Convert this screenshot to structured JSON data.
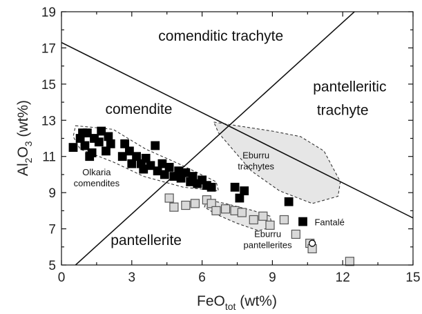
{
  "chart_data": {
    "type": "scatter",
    "xlabel": {
      "base": "FeO",
      "sub": "tot",
      "suffix": " (wt%)"
    },
    "ylabel": {
      "base": "Al",
      "sub1": "2",
      "mid": "O",
      "sub2": "3",
      "suffix": " (wt%)"
    },
    "xlim": [
      0,
      15
    ],
    "ylim": [
      5,
      19
    ],
    "xticks": [
      "0",
      "3",
      "6",
      "9",
      "12",
      "15"
    ],
    "yticks": [
      "5",
      "7",
      "9",
      "11",
      "13",
      "15",
      "17",
      "19"
    ],
    "grid": false,
    "legend": "none",
    "boundaries": [
      {
        "name": "trachyte-rhyolite divide",
        "points": [
          [
            0,
            17.3
          ],
          [
            15,
            7.6
          ]
        ]
      },
      {
        "name": "comendite-pantellerite divide",
        "points": [
          [
            0.6,
            5.0
          ],
          [
            12.5,
            19.0
          ]
        ]
      }
    ],
    "regions": [
      {
        "label": "comenditic trachyte",
        "x": 6.8,
        "y": 17.4,
        "anchor": "middle"
      },
      {
        "label": "pantelleritic",
        "x": 12.3,
        "y": 14.6,
        "anchor": "middle"
      },
      {
        "label": "trachyte",
        "x": 12.0,
        "y": 13.3,
        "anchor": "middle"
      },
      {
        "label": "comendite",
        "x": 3.3,
        "y": 13.35,
        "anchor": "middle"
      },
      {
        "label": "pantellerite",
        "x": 2.1,
        "y": 6.1,
        "anchor": "start"
      }
    ],
    "fields": [
      {
        "label": [
          "Eburru",
          "trachytes"
        ],
        "label_pos": [
          8.3,
          10.9
        ],
        "fill": "#e6e6e6",
        "outline": [
          [
            6.5,
            12.9
          ],
          [
            7.5,
            12.7
          ],
          [
            9.0,
            12.4
          ],
          [
            10.2,
            12.1
          ],
          [
            11.2,
            11.3
          ],
          [
            11.9,
            9.6
          ],
          [
            11.8,
            8.8
          ],
          [
            10.7,
            8.4
          ],
          [
            9.3,
            9.1
          ],
          [
            8.1,
            10.2
          ],
          [
            7.3,
            11.4
          ],
          [
            6.7,
            12.3
          ]
        ]
      },
      {
        "label": [
          "Eburru",
          "pantellerites"
        ],
        "label_pos": [
          8.8,
          6.55
        ],
        "fill": "#e6e6e6",
        "outline": [
          [
            6.2,
            8.6
          ],
          [
            7.0,
            8.4
          ],
          [
            8.2,
            8.0
          ],
          [
            8.9,
            7.7
          ],
          [
            9.0,
            7.1
          ],
          [
            8.4,
            6.9
          ],
          [
            7.5,
            7.3
          ],
          [
            6.6,
            7.8
          ],
          [
            6.1,
            8.2
          ]
        ]
      },
      {
        "label": [
          "Olkaria",
          "comendites"
        ],
        "label_pos": [
          1.5,
          9.95
        ],
        "fill": "none",
        "outline": [
          [
            0.6,
            12.7
          ],
          [
            2.2,
            12.5
          ],
          [
            3.6,
            11.4
          ],
          [
            5.0,
            10.6
          ],
          [
            6.6,
            9.6
          ],
          [
            6.7,
            9.1
          ],
          [
            5.2,
            9.3
          ],
          [
            3.5,
            9.9
          ],
          [
            2.2,
            10.7
          ],
          [
            0.8,
            11.4
          ],
          [
            0.5,
            12.1
          ]
        ]
      }
    ],
    "annotations": [
      {
        "label": "Fantalé",
        "x": 10.8,
        "y": 7.2
      }
    ],
    "series": [
      {
        "marker": "filled-square",
        "color": "#000000",
        "points": [
          [
            0.5,
            11.5
          ],
          [
            0.8,
            12.0
          ],
          [
            1.0,
            11.6
          ],
          [
            1.1,
            12.3
          ],
          [
            1.3,
            11.2
          ],
          [
            1.4,
            12.0
          ],
          [
            1.6,
            11.8
          ],
          [
            1.7,
            12.4
          ],
          [
            1.9,
            11.3
          ],
          [
            2.0,
            12.1
          ],
          [
            2.1,
            11.7
          ],
          [
            1.2,
            11.0
          ],
          [
            0.9,
            12.3
          ],
          [
            2.6,
            11.0
          ],
          [
            2.7,
            11.7
          ],
          [
            2.9,
            11.3
          ],
          [
            3.0,
            10.6
          ],
          [
            3.2,
            11.0
          ],
          [
            3.4,
            10.6
          ],
          [
            3.5,
            10.3
          ],
          [
            3.6,
            10.9
          ],
          [
            3.8,
            10.5
          ],
          [
            4.0,
            11.6
          ],
          [
            4.1,
            10.2
          ],
          [
            4.3,
            10.6
          ],
          [
            4.4,
            10.0
          ],
          [
            4.6,
            10.4
          ],
          [
            4.8,
            9.9
          ],
          [
            5.0,
            10.2
          ],
          [
            5.1,
            9.8
          ],
          [
            5.3,
            10.1
          ],
          [
            5.5,
            9.6
          ],
          [
            5.6,
            9.9
          ],
          [
            5.8,
            9.5
          ],
          [
            6.0,
            9.7
          ],
          [
            6.2,
            9.4
          ],
          [
            6.4,
            9.3
          ],
          [
            7.4,
            9.3
          ],
          [
            7.6,
            8.7
          ],
          [
            7.8,
            9.1
          ],
          [
            9.7,
            8.5
          ],
          [
            10.3,
            7.4
          ]
        ]
      },
      {
        "marker": "open-square",
        "color": "#d9d9d9",
        "points": [
          [
            4.6,
            8.7
          ],
          [
            4.8,
            8.2
          ],
          [
            5.3,
            8.3
          ],
          [
            5.7,
            8.4
          ],
          [
            6.2,
            8.6
          ],
          [
            6.4,
            8.4
          ],
          [
            6.6,
            8.0
          ],
          [
            7.0,
            8.1
          ],
          [
            7.4,
            8.0
          ],
          [
            7.7,
            7.9
          ],
          [
            8.2,
            7.5
          ],
          [
            8.6,
            7.7
          ],
          [
            8.9,
            7.2
          ],
          [
            9.5,
            7.5
          ],
          [
            10.0,
            6.7
          ],
          [
            10.6,
            6.2
          ],
          [
            10.7,
            5.9
          ],
          [
            12.3,
            5.2
          ]
        ]
      },
      {
        "marker": "open-circle",
        "color": "#ffffff",
        "points": [
          [
            10.7,
            6.2
          ]
        ]
      }
    ]
  }
}
